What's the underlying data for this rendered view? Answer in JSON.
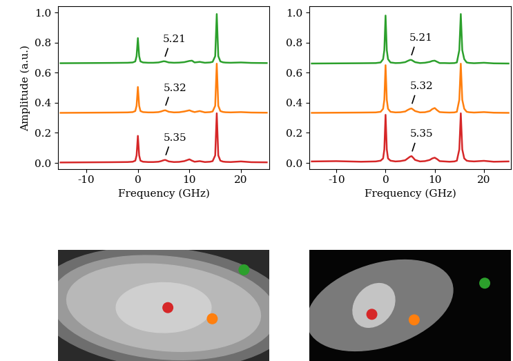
{
  "chart_data": [
    {
      "type": "line",
      "xlabel": "Frequency (GHz)",
      "ylabel": "Amplitude (a.u.)",
      "xlim": [
        -15.5,
        25.5
      ],
      "xticks": [
        -10,
        0,
        10,
        20
      ],
      "ylim": [
        -0.04,
        1.04
      ],
      "yticks": [
        {
          "value": 0,
          "label": "0.0"
        },
        {
          "value": 0.2,
          "label": "0.2"
        },
        {
          "value": 0.4,
          "label": "0.4"
        },
        {
          "value": 0.6,
          "label": "0.6"
        },
        {
          "value": 0.8,
          "label": "0.8"
        },
        {
          "value": 1.0,
          "label": "1.0"
        }
      ],
      "x": [
        -15,
        -10,
        -5,
        -2,
        -1,
        -0.5,
        -0.25,
        0,
        0.25,
        0.5,
        1,
        2,
        3,
        4,
        4.5,
        5,
        5.3,
        5.6,
        6,
        7,
        8,
        9,
        9.5,
        10,
        10.5,
        11,
        12,
        13,
        14,
        14.5,
        15,
        15.3,
        15.6,
        16,
        16.5,
        17,
        18,
        20,
        22,
        25
      ],
      "series": [
        {
          "color": "#2ca02c",
          "annotation": {
            "text": "5.21",
            "x": 5.21
          },
          "values": [
            0.663,
            0.664,
            0.665,
            0.666,
            0.668,
            0.675,
            0.71,
            0.83,
            0.71,
            0.675,
            0.668,
            0.666,
            0.666,
            0.668,
            0.672,
            0.676,
            0.675,
            0.672,
            0.668,
            0.666,
            0.667,
            0.67,
            0.674,
            0.678,
            0.68,
            0.668,
            0.672,
            0.666,
            0.668,
            0.672,
            0.71,
            0.99,
            0.71,
            0.675,
            0.669,
            0.667,
            0.666,
            0.668,
            0.665,
            0.664
          ]
        },
        {
          "color": "#ff7f0e",
          "annotation": {
            "text": "5.32",
            "x": 5.32
          },
          "values": [
            0.333,
            0.334,
            0.335,
            0.336,
            0.338,
            0.345,
            0.38,
            0.505,
            0.38,
            0.345,
            0.338,
            0.336,
            0.336,
            0.338,
            0.342,
            0.348,
            0.35,
            0.346,
            0.34,
            0.336,
            0.337,
            0.342,
            0.346,
            0.35,
            0.343,
            0.338,
            0.345,
            0.336,
            0.338,
            0.342,
            0.38,
            0.66,
            0.38,
            0.345,
            0.339,
            0.337,
            0.336,
            0.338,
            0.335,
            0.334
          ]
        },
        {
          "color": "#d62728",
          "annotation": {
            "text": "5.35",
            "x": 5.35
          },
          "values": [
            0.003,
            0.004,
            0.005,
            0.006,
            0.008,
            0.015,
            0.05,
            0.18,
            0.05,
            0.015,
            0.008,
            0.006,
            0.006,
            0.008,
            0.012,
            0.018,
            0.02,
            0.016,
            0.01,
            0.006,
            0.007,
            0.012,
            0.018,
            0.024,
            0.015,
            0.008,
            0.012,
            0.006,
            0.008,
            0.012,
            0.05,
            0.33,
            0.05,
            0.015,
            0.009,
            0.007,
            0.006,
            0.01,
            0.005,
            0.004
          ]
        }
      ]
    },
    {
      "type": "line",
      "xlabel": "Frequency (GHz)",
      "xlim": [
        -15.5,
        25.5
      ],
      "xticks": [
        -10,
        0,
        10,
        20
      ],
      "ylim": [
        -0.04,
        1.04
      ],
      "yticks": [
        {
          "value": 0,
          "label": "0.0"
        },
        {
          "value": 0.2,
          "label": "0.2"
        },
        {
          "value": 0.4,
          "label": "0.4"
        },
        {
          "value": 0.6,
          "label": "0.6"
        },
        {
          "value": 0.8,
          "label": "0.8"
        },
        {
          "value": 1.0,
          "label": "1.0"
        }
      ],
      "x": [
        -15,
        -10,
        -5,
        -2,
        -1,
        -0.5,
        -0.25,
        0,
        0.25,
        0.5,
        1,
        2,
        3,
        4,
        4.5,
        5,
        5.3,
        5.6,
        6,
        7,
        8,
        9,
        9.5,
        10,
        10.5,
        11,
        12,
        13,
        14,
        14.5,
        15,
        15.3,
        15.6,
        16,
        16.5,
        17,
        18,
        20,
        22,
        25
      ],
      "series": [
        {
          "color": "#2ca02c",
          "annotation": {
            "text": "5.21",
            "x": 5.21
          },
          "values": [
            0.661,
            0.662,
            0.663,
            0.664,
            0.668,
            0.69,
            0.75,
            0.98,
            0.75,
            0.69,
            0.668,
            0.664,
            0.665,
            0.67,
            0.678,
            0.685,
            0.684,
            0.678,
            0.67,
            0.664,
            0.666,
            0.672,
            0.678,
            0.68,
            0.672,
            0.664,
            0.664,
            0.663,
            0.664,
            0.668,
            0.75,
            0.99,
            0.75,
            0.69,
            0.668,
            0.665,
            0.663,
            0.666,
            0.662,
            0.661
          ]
        },
        {
          "color": "#ff7f0e",
          "annotation": {
            "text": "5.32",
            "x": 5.32
          },
          "values": [
            0.333,
            0.334,
            0.335,
            0.336,
            0.34,
            0.36,
            0.42,
            0.65,
            0.42,
            0.36,
            0.34,
            0.336,
            0.337,
            0.342,
            0.352,
            0.36,
            0.362,
            0.355,
            0.345,
            0.336,
            0.337,
            0.345,
            0.358,
            0.365,
            0.35,
            0.338,
            0.336,
            0.335,
            0.336,
            0.34,
            0.42,
            0.66,
            0.42,
            0.36,
            0.34,
            0.337,
            0.335,
            0.338,
            0.334,
            0.333
          ]
        },
        {
          "color": "#d62728",
          "annotation": {
            "text": "5.35",
            "x": 5.35
          },
          "values": [
            0.01,
            0.012,
            0.008,
            0.01,
            0.015,
            0.03,
            0.09,
            0.32,
            0.09,
            0.03,
            0.015,
            0.01,
            0.012,
            0.018,
            0.03,
            0.042,
            0.045,
            0.035,
            0.02,
            0.01,
            0.012,
            0.02,
            0.03,
            0.035,
            0.025,
            0.012,
            0.01,
            0.008,
            0.01,
            0.015,
            0.09,
            0.33,
            0.09,
            0.03,
            0.015,
            0.012,
            0.01,
            0.014,
            0.008,
            0.01
          ]
        }
      ]
    }
  ]
}
